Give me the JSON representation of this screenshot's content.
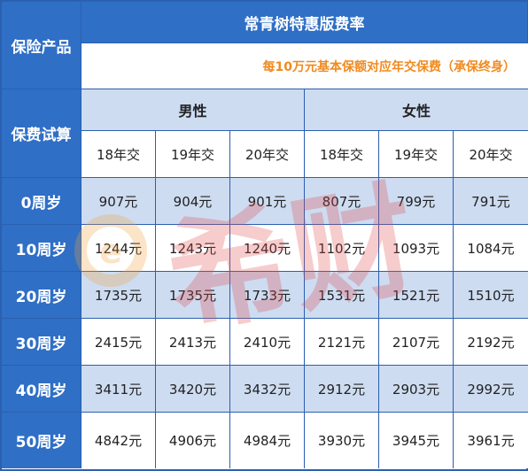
{
  "table": {
    "title": "常青树特惠版费率",
    "product_label": "保险产品",
    "calc_label": "保费试算",
    "note": "每10万元基本保额对应年交保费（承保终身）",
    "male_label": "男性",
    "female_label": "女性",
    "periods": [
      "18年交",
      "19年交",
      "20年交",
      "18年交",
      "19年交",
      "20年交"
    ],
    "rows": [
      {
        "age": "0周岁",
        "values": [
          "907元",
          "904元",
          "901元",
          "807元",
          "799元",
          "791元"
        ]
      },
      {
        "age": "10周岁",
        "values": [
          "1244元",
          "1243元",
          "1240元",
          "1102元",
          "1093元",
          "1084元"
        ]
      },
      {
        "age": "20周岁",
        "values": [
          "1735元",
          "1735元",
          "1733元",
          "1531元",
          "1521元",
          "1510元"
        ]
      },
      {
        "age": "30周岁",
        "values": [
          "2415元",
          "2413元",
          "2410元",
          "2121元",
          "2107元",
          "2192元"
        ]
      },
      {
        "age": "40周岁",
        "values": [
          "3411元",
          "3420元",
          "3432元",
          "2912元",
          "2903元",
          "2992元"
        ]
      },
      {
        "age": "50周岁",
        "values": [
          "4842元",
          "4906元",
          "4984元",
          "3930元",
          "3945元",
          "3961元"
        ]
      }
    ]
  },
  "colors": {
    "header_blue": "#2f6fc6",
    "row_light": "#cddcf1",
    "note_orange": "#f08a1e",
    "border": "#2c5fb0"
  },
  "watermark": {
    "text": "希财"
  }
}
